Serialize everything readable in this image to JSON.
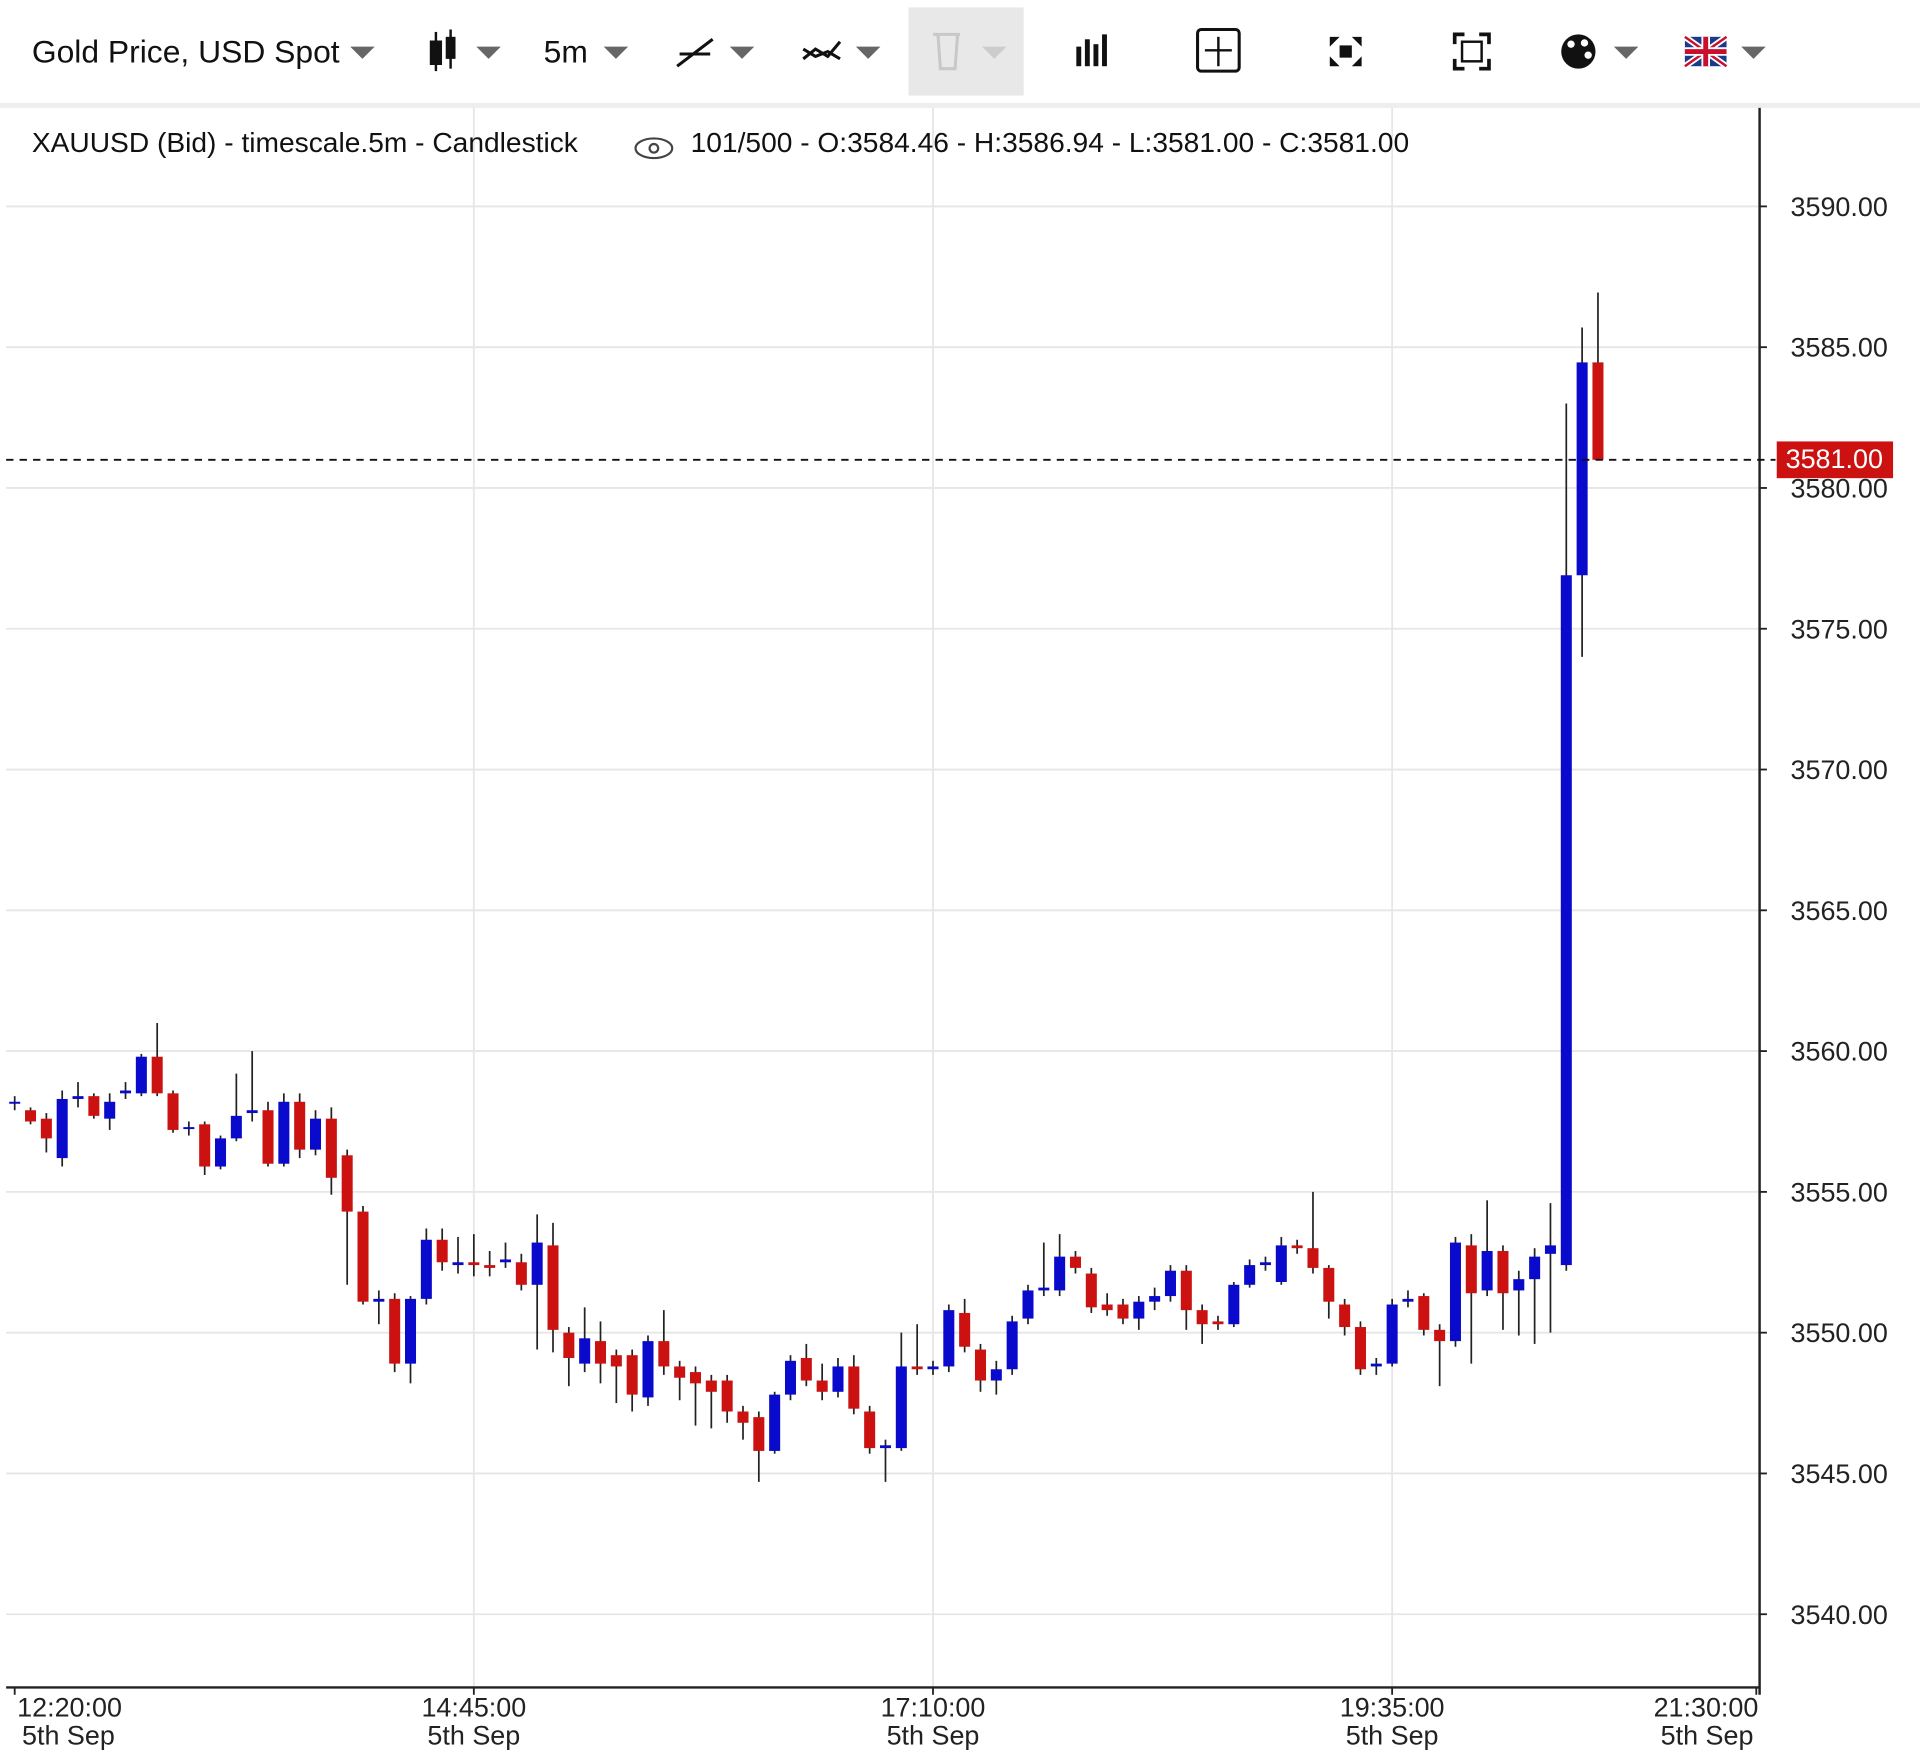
{
  "toolbar": {
    "instrument": "Gold Price, USD Spot",
    "timescale": "5m"
  },
  "chart_data": {
    "type": "candlestick",
    "title": "XAUUSD (Bid) - timescale.5m - Candlestick",
    "info": "101/500 - O:3584.46 - H:3586.94 - L:3581.00 - C:3581.00",
    "up_color": "#0a0acc",
    "down_color": "#cc1111",
    "x": [
      "12:20:00",
      "12:25:00",
      "12:30:00",
      "12:35:00",
      "12:40:00",
      "12:45:00",
      "12:50:00",
      "12:55:00",
      "13:00:00",
      "13:05:00",
      "13:10:00",
      "13:15:00",
      "13:20:00",
      "13:25:00",
      "13:30:00",
      "13:35:00",
      "13:40:00",
      "13:45:00",
      "13:50:00",
      "13:55:00",
      "14:00:00",
      "14:05:00",
      "14:10:00",
      "14:15:00",
      "14:20:00",
      "14:25:00",
      "14:30:00",
      "14:35:00",
      "14:40:00",
      "14:45:00",
      "14:50:00",
      "14:55:00",
      "15:00:00",
      "15:05:00",
      "15:10:00",
      "15:15:00",
      "15:20:00",
      "15:25:00",
      "15:30:00",
      "15:35:00",
      "15:40:00",
      "15:45:00",
      "15:50:00",
      "15:55:00",
      "16:00:00",
      "16:05:00",
      "16:10:00",
      "16:15:00",
      "16:20:00",
      "16:25:00",
      "16:30:00",
      "16:35:00",
      "16:40:00",
      "16:45:00",
      "16:50:00",
      "16:55:00",
      "17:00:00",
      "17:05:00",
      "17:10:00",
      "17:15:00",
      "17:20:00",
      "17:25:00",
      "17:30:00",
      "17:35:00",
      "17:40:00",
      "17:45:00",
      "17:50:00",
      "17:55:00",
      "18:00:00",
      "18:05:00",
      "18:10:00",
      "18:15:00",
      "18:20:00",
      "18:25:00",
      "18:30:00",
      "18:35:00",
      "18:40:00",
      "18:45:00",
      "18:50:00",
      "18:55:00",
      "19:00:00",
      "19:05:00",
      "19:10:00",
      "19:15:00",
      "19:20:00",
      "19:25:00",
      "19:30:00",
      "19:35:00",
      "19:40:00",
      "19:45:00",
      "19:50:00",
      "19:55:00",
      "20:00:00",
      "20:05:00",
      "20:10:00",
      "20:15:00",
      "20:20:00",
      "20:25:00",
      "20:30:00",
      "20:35:00",
      "20:40:00"
    ],
    "open": [
      3558.2,
      3557.9,
      3557.6,
      3556.2,
      3558.3,
      3558.4,
      3557.6,
      3558.5,
      3558.5,
      3559.8,
      3558.5,
      3557.3,
      3557.4,
      3555.9,
      3556.9,
      3557.8,
      3557.9,
      3556.0,
      3558.2,
      3556.5,
      3557.6,
      3556.3,
      3554.3,
      3551.1,
      3551.2,
      3548.9,
      3551.2,
      3553.3,
      3552.4,
      3552.5,
      3552.4,
      3552.5,
      3552.5,
      3551.7,
      3553.1,
      3550.0,
      3548.9,
      3549.7,
      3549.2,
      3549.2,
      3547.7,
      3549.7,
      3548.8,
      3548.6,
      3548.3,
      3548.3,
      3547.2,
      3547.0,
      3545.8,
      3547.8,
      3549.1,
      3548.3,
      3547.9,
      3548.8,
      3547.2,
      3545.9,
      3545.9,
      3548.8,
      3548.7,
      3548.8,
      3550.7,
      3549.4,
      3548.3,
      3548.7,
      3550.5,
      3551.5,
      3551.5,
      3552.7,
      3552.1,
      3551.0,
      3551.0,
      3550.5,
      3551.1,
      3551.3,
      3552.2,
      3550.8,
      3550.4,
      3550.3,
      3551.7,
      3552.4,
      3551.8,
      3553.1,
      3553.0,
      3552.3,
      3551.0,
      3550.2,
      3548.8,
      3548.9,
      3551.1,
      3551.3,
      3550.1,
      3549.7,
      3553.1,
      3551.5,
      3552.9,
      3551.5,
      3551.9,
      3552.8,
      3552.4,
      3576.9,
      3584.46
    ],
    "high": [
      3558.4,
      3558.0,
      3557.8,
      3558.6,
      3558.9,
      3558.5,
      3558.5,
      3558.9,
      3559.9,
      3561.0,
      3558.6,
      3557.5,
      3557.5,
      3557.0,
      3559.2,
      3560.0,
      3558.2,
      3558.5,
      3558.5,
      3557.9,
      3558.0,
      3556.5,
      3554.5,
      3551.5,
      3551.4,
      3551.3,
      3553.7,
      3553.7,
      3553.4,
      3553.5,
      3552.9,
      3553.2,
      3552.8,
      3554.2,
      3553.9,
      3550.2,
      3550.9,
      3550.4,
      3549.4,
      3549.4,
      3549.9,
      3550.8,
      3549.0,
      3548.8,
      3548.5,
      3548.5,
      3547.4,
      3547.2,
      3547.9,
      3549.2,
      3549.6,
      3548.9,
      3549.1,
      3549.2,
      3547.4,
      3546.2,
      3550.0,
      3550.3,
      3549.0,
      3551.0,
      3551.2,
      3549.6,
      3549.0,
      3550.6,
      3551.7,
      3553.2,
      3553.5,
      3552.9,
      3552.3,
      3551.4,
      3551.2,
      3551.3,
      3551.6,
      3552.4,
      3552.4,
      3551.0,
      3550.6,
      3551.8,
      3552.6,
      3552.7,
      3553.4,
      3553.3,
      3555.0,
      3552.4,
      3551.2,
      3550.4,
      3549.1,
      3551.2,
      3551.5,
      3551.4,
      3550.3,
      3553.4,
      3553.5,
      3554.7,
      3553.1,
      3552.2,
      3553.0,
      3554.6,
      3583.0,
      3585.7,
      3586.94
    ],
    "low": [
      3557.9,
      3557.4,
      3556.4,
      3555.9,
      3558.0,
      3557.6,
      3557.2,
      3558.3,
      3558.4,
      3558.4,
      3557.1,
      3557.0,
      3555.6,
      3555.8,
      3556.8,
      3557.5,
      3555.9,
      3555.9,
      3556.2,
      3556.3,
      3554.9,
      3551.7,
      3551.0,
      3550.3,
      3548.6,
      3548.2,
      3551.0,
      3552.2,
      3552.1,
      3552.0,
      3552.0,
      3552.3,
      3551.5,
      3549.4,
      3549.3,
      3548.1,
      3548.6,
      3548.2,
      3547.5,
      3547.2,
      3547.4,
      3548.5,
      3547.6,
      3546.7,
      3546.6,
      3546.8,
      3546.2,
      3544.7,
      3545.7,
      3547.6,
      3548.1,
      3547.6,
      3547.7,
      3547.1,
      3545.7,
      3544.7,
      3545.8,
      3548.5,
      3548.5,
      3548.6,
      3549.3,
      3547.9,
      3547.8,
      3548.5,
      3550.3,
      3551.3,
      3551.3,
      3552.1,
      3550.7,
      3550.6,
      3550.3,
      3550.1,
      3550.8,
      3551.1,
      3550.1,
      3549.6,
      3550.1,
      3550.2,
      3551.6,
      3552.2,
      3551.7,
      3552.8,
      3552.1,
      3550.5,
      3549.9,
      3548.5,
      3548.5,
      3548.8,
      3550.9,
      3549.9,
      3548.1,
      3549.5,
      3548.9,
      3551.3,
      3550.1,
      3549.9,
      3549.6,
      3550.0,
      3552.2,
      3574.0,
      3581.0
    ],
    "close": [
      3558.2,
      3557.5,
      3556.9,
      3558.3,
      3558.4,
      3557.7,
      3558.2,
      3558.6,
      3559.8,
      3558.5,
      3557.2,
      3557.3,
      3555.9,
      3556.9,
      3557.7,
      3557.9,
      3556.0,
      3558.2,
      3556.5,
      3557.6,
      3555.5,
      3554.3,
      3551.1,
      3551.2,
      3548.9,
      3551.2,
      3553.3,
      3552.5,
      3552.5,
      3552.4,
      3552.3,
      3552.6,
      3551.7,
      3553.2,
      3550.1,
      3549.1,
      3549.8,
      3548.9,
      3548.8,
      3547.8,
      3549.7,
      3548.8,
      3548.4,
      3548.2,
      3547.9,
      3547.2,
      3546.8,
      3545.8,
      3547.8,
      3549.0,
      3548.3,
      3547.9,
      3548.8,
      3547.3,
      3545.9,
      3546.0,
      3548.8,
      3548.7,
      3548.8,
      3550.8,
      3549.5,
      3548.3,
      3548.7,
      3550.4,
      3551.5,
      3551.6,
      3552.7,
      3552.3,
      3550.9,
      3550.8,
      3550.5,
      3551.1,
      3551.3,
      3552.2,
      3550.8,
      3550.3,
      3550.3,
      3551.7,
      3552.4,
      3552.5,
      3553.1,
      3553.0,
      3552.3,
      3551.1,
      3550.2,
      3548.7,
      3548.9,
      3551.0,
      3551.2,
      3550.1,
      3549.7,
      3553.2,
      3551.4,
      3552.9,
      3551.4,
      3551.9,
      3552.7,
      3553.1,
      3576.9,
      3584.46,
      3581.0
    ],
    "last_price": {
      "value": 3581.0,
      "label": "3581.00"
    },
    "ylim": [
      3537.4,
      3593.5
    ],
    "yticks": [
      {
        "value": 3540,
        "label": "3540.00"
      },
      {
        "value": 3545,
        "label": "3545.00"
      },
      {
        "value": 3550,
        "label": "3550.00"
      },
      {
        "value": 3555,
        "label": "3555.00"
      },
      {
        "value": 3560,
        "label": "3560.00"
      },
      {
        "value": 3565,
        "label": "3565.00"
      },
      {
        "value": 3570,
        "label": "3570.00"
      },
      {
        "value": 3575,
        "label": "3575.00"
      },
      {
        "value": 3580,
        "label": "3580.00"
      },
      {
        "value": 3585,
        "label": "3585.00"
      },
      {
        "value": 3590,
        "label": "3590.00"
      }
    ],
    "xticks": [
      {
        "value": "12:20:00",
        "label": "5th Sep"
      },
      {
        "value": "14:45:00",
        "label": "5th Sep"
      },
      {
        "value": "17:10:00",
        "label": "5th Sep"
      },
      {
        "value": "19:35:00",
        "label": "5th Sep"
      },
      {
        "value": "21:30:00",
        "label": "5th Sep"
      }
    ],
    "grid": true
  }
}
